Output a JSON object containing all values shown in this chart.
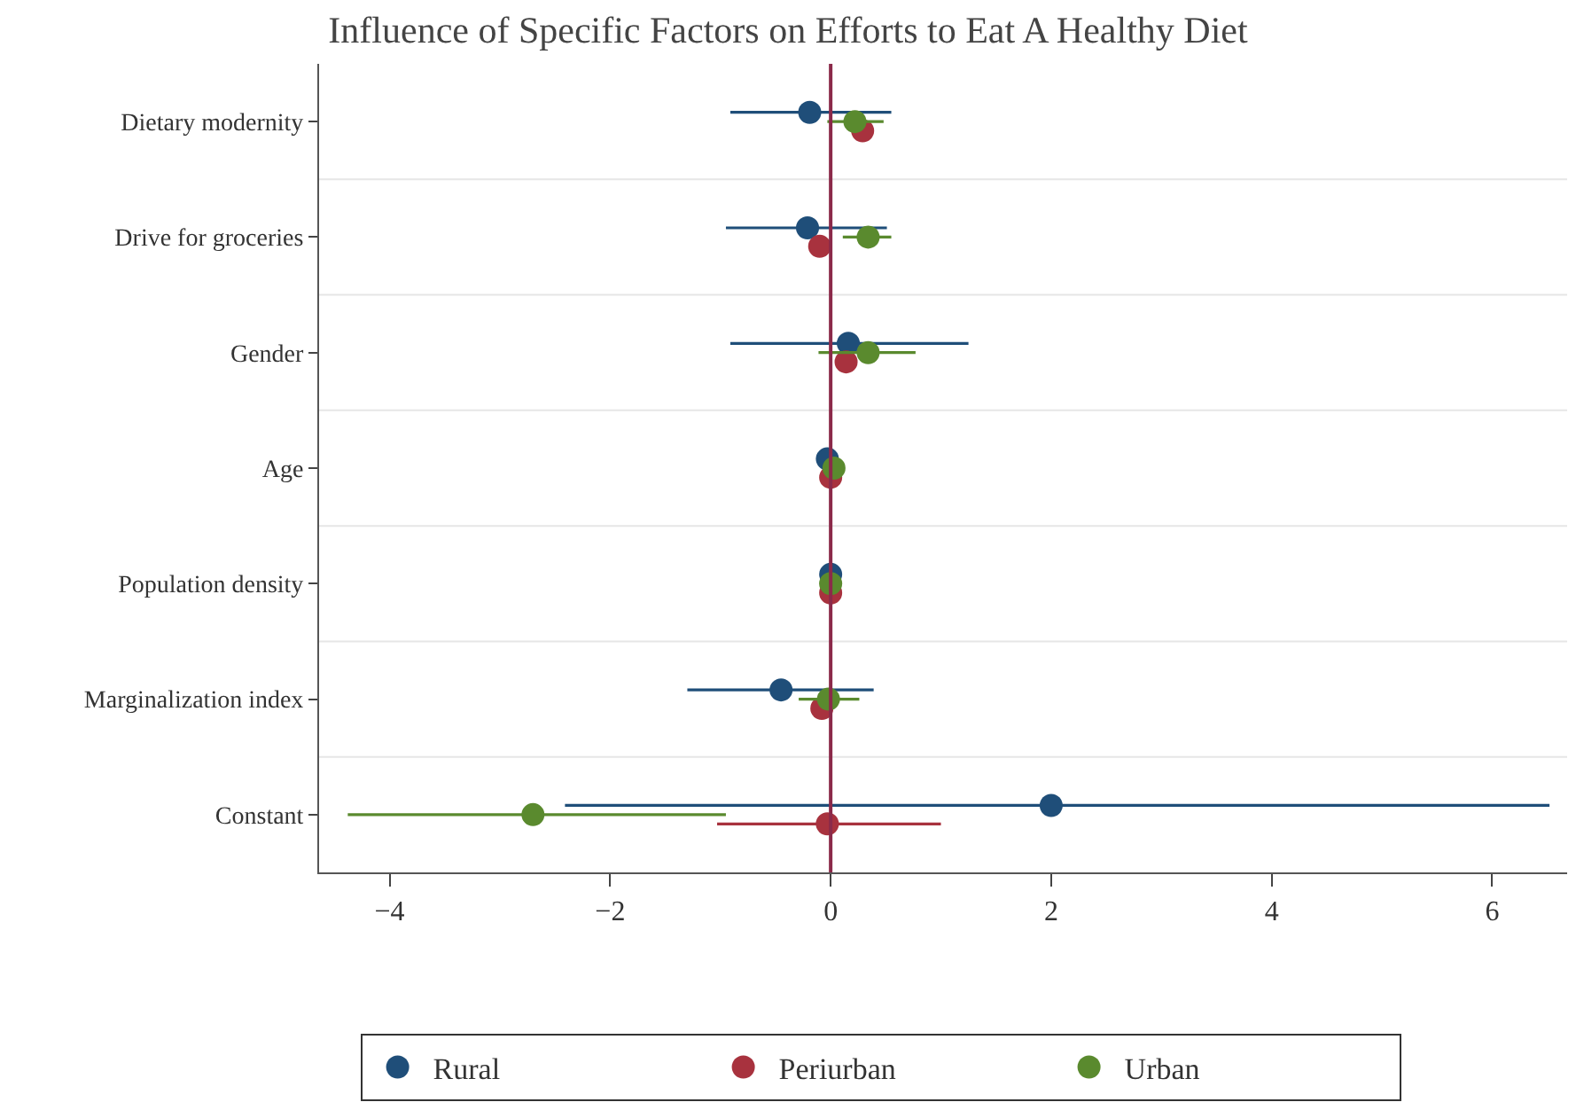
{
  "chart_data": {
    "type": "scatter",
    "orientation": "horizontal",
    "title": "Influence of Specific Factors on Efforts to Eat A Healthy Diet",
    "categories": [
      "Dietary modernity",
      "Drive for groceries",
      "Gender",
      "Age",
      "Population density",
      "Marginalization index",
      "Constant"
    ],
    "series": [
      {
        "name": "Rural",
        "color": "#1f4e79",
        "values": [
          -0.19,
          -0.21,
          0.16,
          -0.03,
          0.0,
          -0.45,
          2.0
        ],
        "errors": [
          [
            -0.91,
            0.55
          ],
          [
            -0.95,
            0.51
          ],
          [
            -0.91,
            1.25
          ],
          null,
          null,
          [
            -1.3,
            0.39
          ],
          [
            -2.41,
            6.52
          ]
        ]
      },
      {
        "name": "Periurban",
        "color": "#a8323e",
        "values": [
          0.29,
          -0.1,
          0.14,
          0.0,
          0.0,
          -0.08,
          -0.03
        ],
        "errors": [
          null,
          null,
          null,
          null,
          null,
          null,
          [
            -1.03,
            1.0
          ]
        ]
      },
      {
        "name": "Urban",
        "color": "#5a8a2e",
        "values": [
          0.22,
          0.34,
          0.34,
          0.03,
          0.0,
          -0.02,
          -2.7
        ],
        "errors": [
          [
            -0.03,
            0.48
          ],
          [
            0.11,
            0.55
          ],
          [
            -0.11,
            0.77
          ],
          null,
          null,
          [
            -0.29,
            0.26
          ],
          [
            -4.38,
            -0.95
          ]
        ]
      }
    ],
    "xlim": [
      -4.64,
      6.68
    ],
    "xticks": [
      -4,
      -2,
      0,
      2,
      4,
      6
    ],
    "ref_lines": [
      {
        "axis": "x",
        "value": 0,
        "color": "#8b2a4a"
      }
    ],
    "grid": "y",
    "legend": "bottom",
    "marker": "circle"
  }
}
